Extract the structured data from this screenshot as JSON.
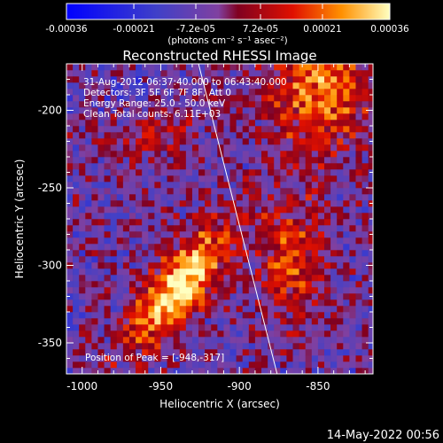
{
  "chart_data": {
    "type": "heatmap",
    "title": "Reconstructed RHESSI Image",
    "xlabel": "Heliocentric X (arcsec)",
    "ylabel": "Heliocentric Y (arcsec)",
    "xlim": [
      -1010,
      -815
    ],
    "ylim": [
      -370,
      -170
    ],
    "x_ticks": [
      "-1000",
      "-950",
      "-900",
      "-850"
    ],
    "y_ticks": [
      "-200",
      "-250",
      "-300",
      "-350"
    ],
    "colorbar": {
      "range": [
        -0.00036,
        0.00036
      ],
      "tick_labels": [
        "-0.00036",
        "-0.00021",
        "-7.2e-05",
        "7.2e-05",
        "0.00021",
        "0.00036"
      ],
      "unit_label": "(photons cm⁻² s⁻¹ asec⁻²)"
    },
    "annotations": [
      "31-Aug-2012 06:37:40.000 to 06:43:40.000",
      "Detectors: 3F 5F 6F 7F 8F, Att 0",
      "Energy Range: 25.0 - 50.0 keV",
      "Clean    Total counts: 6.11E+03"
    ],
    "peak_label": "Position of Peak = [-948,-317]",
    "peak": [
      -948,
      -317
    ],
    "sources": [
      {
        "x": -938,
        "y": -313,
        "intensity": 1.0
      },
      {
        "x": -848,
        "y": -185,
        "intensity": 0.7
      },
      {
        "x": -867,
        "y": -295,
        "intensity": 0.55
      },
      {
        "x": -957,
        "y": -210,
        "intensity": 0.45
      }
    ],
    "limb": [
      [
        -926,
        -170
      ],
      [
        -876,
        -370
      ]
    ],
    "date_stamp": "14-May-2022 00:56"
  }
}
